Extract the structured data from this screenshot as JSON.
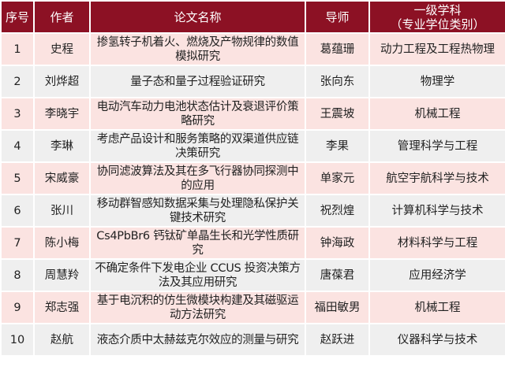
{
  "colors": {
    "header_bg": "#8c1124",
    "odd_row": "#fbe3e1",
    "even_row": "#efefef"
  },
  "headers": [
    "序号",
    "作者",
    "论文名称",
    "导师",
    "一级学科\n（专业学位类别）"
  ],
  "header_discipline_line1": "一级学科",
  "header_discipline_line2": "（专业学位类别）",
  "rows": [
    {
      "no": "1",
      "author": "史程",
      "title": "掺氢转子机着火、燃烧及产物规律的数值模拟研究",
      "advisor": "葛蕴珊",
      "discipline": "动力工程及工程热物理"
    },
    {
      "no": "2",
      "author": "刘烨超",
      "title": "量子态和量子过程验证研究",
      "advisor": "张向东",
      "discipline": "物理学"
    },
    {
      "no": "3",
      "author": "李晓宇",
      "title": "电动汽车动力电池状态估计及衰退评价策略研究",
      "advisor": "王震坡",
      "discipline": "机械工程"
    },
    {
      "no": "4",
      "author": "李琳",
      "title": "考虑产品设计和服务策略的双渠道供应链决策研究",
      "advisor": "李果",
      "discipline": "管理科学与工程"
    },
    {
      "no": "5",
      "author": "宋威豪",
      "title": "协同滤波算法及其在多飞行器协同探测中的应用",
      "advisor": "单家元",
      "discipline": "航空宇航科学与技术"
    },
    {
      "no": "6",
      "author": "张川",
      "title": "移动群智感知数据采集与处理隐私保护关键技术研究",
      "advisor": "祝烈煌",
      "discipline": "计算机科学与技术"
    },
    {
      "no": "7",
      "author": "陈小梅",
      "title": "Cs4PbBr6 钙钛矿单晶生长和光学性质研究",
      "advisor": "钟海政",
      "discipline": "材料科学与工程"
    },
    {
      "no": "8",
      "author": "周慧羚",
      "title": "不确定条件下发电企业 CCUS 投资决策方法及其应用研究",
      "advisor": "唐葆君",
      "discipline": "应用经济学"
    },
    {
      "no": "9",
      "author": "郑志强",
      "title": "基于电沉积的仿生微模块构建及其磁驱运动方法研究",
      "advisor": "福田敏男",
      "discipline": "机械工程"
    },
    {
      "no": "10",
      "author": "赵航",
      "title": "液态介质中太赫兹克尔效应的测量与研究",
      "advisor": "赵跃进",
      "discipline": "仪器科学与技术"
    }
  ]
}
